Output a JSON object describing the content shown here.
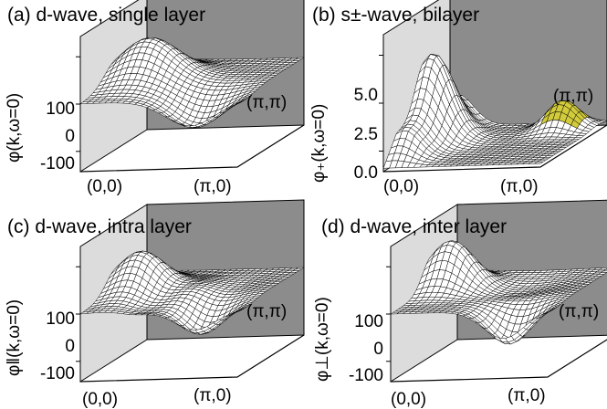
{
  "panels": [
    {
      "id": "a",
      "title": "(a)  d-wave, single layer",
      "ylabel": "φ(k,ω=0)",
      "ticks": [
        "100",
        "0",
        "-100"
      ],
      "corner_origin": "(0,0)",
      "corner_x": "(π,0)",
      "corner_far": "(π,π)"
    },
    {
      "id": "b",
      "title": "(b)  s±-wave, bilayer",
      "ylabel": "φ₊(k,ω=0)",
      "ticks": [
        "5.0",
        "2.5",
        "0.0"
      ],
      "corner_origin": "(0,0)",
      "corner_x": "(π,0)",
      "corner_far": "(π,π)"
    },
    {
      "id": "c",
      "title": "(c)  d-wave, intra layer",
      "ylabel": "φ‖(k,ω=0)",
      "ticks": [
        "100",
        "0",
        "-100"
      ],
      "corner_origin": "(0,0)",
      "corner_x": "(π,0)",
      "corner_far": "(π,π)"
    },
    {
      "id": "d",
      "title": "(d)  d-wave, inter layer",
      "ylabel": "φ⊥(k,ω=0)",
      "ticks": [
        "100",
        "0",
        "-100"
      ],
      "corner_origin": "(0,0)",
      "corner_x": "(π,0)",
      "corner_far": "(π,π)"
    }
  ],
  "colors": {
    "back_wall": "#8c8c8c",
    "side_wall": "#dcdcdc",
    "mesh_fill": "#ffffff",
    "mesh_line": "#000000",
    "highlight_fill": "#d2cc3c"
  }
}
